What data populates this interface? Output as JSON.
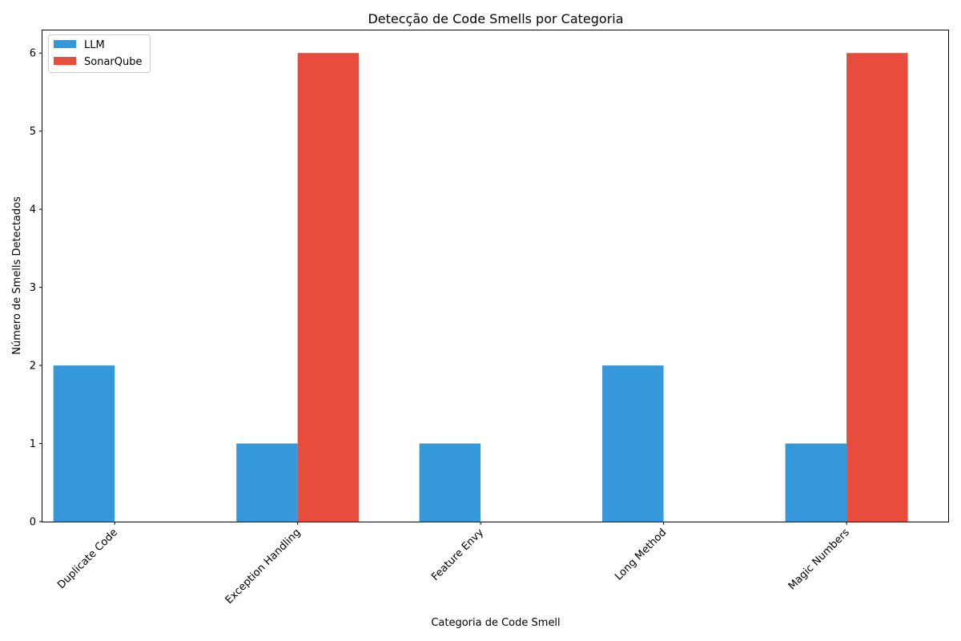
{
  "chart_data": {
    "type": "bar",
    "title": "Detecção de Code Smells por Categoria",
    "xlabel": "Categoria de Code Smell",
    "ylabel": "Número de Smells Detectados",
    "categories": [
      "Duplicate Code",
      "Exception Handling",
      "Feature Envy",
      "Long Method",
      "Magic Numbers"
    ],
    "series": [
      {
        "name": "LLM",
        "values": [
          2,
          1,
          1,
          2,
          1
        ],
        "color": "#3498db"
      },
      {
        "name": "SonarQube",
        "values": [
          0,
          6,
          0,
          0,
          6
        ],
        "color": "#e74c3c"
      }
    ],
    "ylim": [
      0,
      6.3
    ],
    "yticks": [
      0,
      1,
      2,
      3,
      4,
      5,
      6
    ],
    "grid": false,
    "legend_position": "top-left"
  }
}
